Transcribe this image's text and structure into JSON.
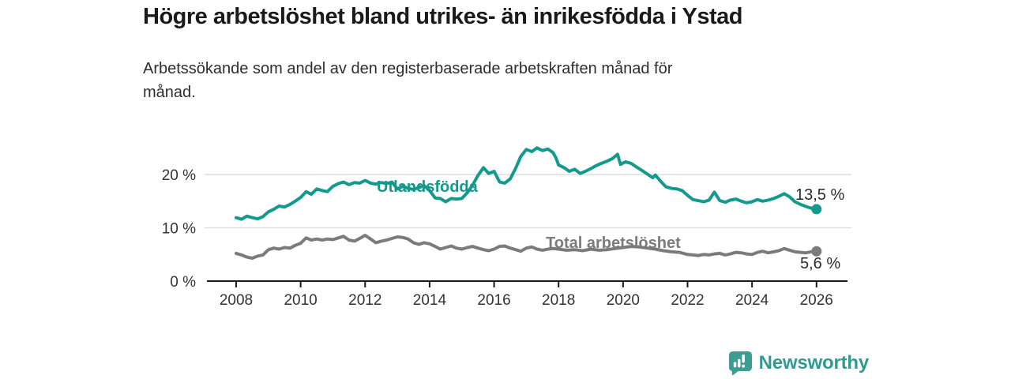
{
  "header": {
    "title": "Högre arbetslöshet bland utrikes- än inrikesfödda i Ystad",
    "subtitle_line1": "Arbetssökande som andel av den registerbaserade arbetskraften månad för",
    "subtitle_line2": "månad."
  },
  "chart_data": {
    "type": "line",
    "title": "Högre arbetslöshet bland utrikes- än inrikesfödda i Ystad",
    "subtitle": "Arbetssökande som andel av den registerbaserade arbetskraften månad för månad.",
    "x_axis": {
      "range": [
        2007.1,
        2027.0
      ],
      "ticks": [
        {
          "year": 2008,
          "label": "2008"
        },
        {
          "year": 2010,
          "label": "2010"
        },
        {
          "year": 2012,
          "label": "2012"
        },
        {
          "year": 2014,
          "label": "2014"
        },
        {
          "year": 2016,
          "label": "2016"
        },
        {
          "year": 2018,
          "label": "2018"
        },
        {
          "year": 2020,
          "label": "2020"
        },
        {
          "year": 2022,
          "label": "2022"
        },
        {
          "year": 2024,
          "label": "2024"
        },
        {
          "year": 2026,
          "label": "2026"
        }
      ]
    },
    "y_axis": {
      "unit": "%",
      "range": [
        0,
        26
      ],
      "grid": true,
      "ticks": [
        {
          "value": 0,
          "label": "0 %"
        },
        {
          "value": 10,
          "label": "10 %"
        },
        {
          "value": 20,
          "label": "20 %"
        }
      ]
    },
    "legend_position": "inline-labels",
    "series": [
      {
        "name": "Utlandsfödda",
        "color": "#149a8d",
        "end_label": "13,5 %",
        "end_value": 13.5,
        "points": [
          [
            2008.0,
            11.9
          ],
          [
            2008.17,
            11.6
          ],
          [
            2008.33,
            12.2
          ],
          [
            2008.5,
            11.9
          ],
          [
            2008.67,
            11.7
          ],
          [
            2008.83,
            12.1
          ],
          [
            2009.0,
            13.0
          ],
          [
            2009.17,
            13.5
          ],
          [
            2009.33,
            14.1
          ],
          [
            2009.5,
            13.9
          ],
          [
            2009.67,
            14.4
          ],
          [
            2009.83,
            15.0
          ],
          [
            2010.0,
            15.7
          ],
          [
            2010.17,
            16.8
          ],
          [
            2010.33,
            16.3
          ],
          [
            2010.5,
            17.3
          ],
          [
            2010.67,
            17.0
          ],
          [
            2010.83,
            16.8
          ],
          [
            2011.0,
            17.8
          ],
          [
            2011.17,
            18.3
          ],
          [
            2011.33,
            18.6
          ],
          [
            2011.5,
            18.1
          ],
          [
            2011.67,
            18.5
          ],
          [
            2011.83,
            18.4
          ],
          [
            2012.0,
            18.9
          ],
          [
            2012.17,
            18.4
          ],
          [
            2012.33,
            18.2
          ],
          [
            2012.5,
            18.5
          ],
          [
            2012.67,
            18.3
          ],
          [
            2012.83,
            18.6
          ],
          [
            2013.0,
            17.3
          ],
          [
            2013.17,
            17.8
          ],
          [
            2013.33,
            17.4
          ],
          [
            2013.5,
            17.2
          ],
          [
            2013.67,
            17.6
          ],
          [
            2013.83,
            17.9
          ],
          [
            2014.0,
            17.0
          ],
          [
            2014.17,
            15.6
          ],
          [
            2014.33,
            15.5
          ],
          [
            2014.5,
            14.9
          ],
          [
            2014.67,
            15.5
          ],
          [
            2014.83,
            15.4
          ],
          [
            2015.0,
            15.5
          ],
          [
            2015.17,
            16.6
          ],
          [
            2015.33,
            18.0
          ],
          [
            2015.5,
            19.8
          ],
          [
            2015.67,
            21.3
          ],
          [
            2015.83,
            20.2
          ],
          [
            2016.0,
            20.6
          ],
          [
            2016.17,
            18.6
          ],
          [
            2016.33,
            18.4
          ],
          [
            2016.5,
            19.2
          ],
          [
            2016.67,
            21.2
          ],
          [
            2016.83,
            23.4
          ],
          [
            2017.0,
            24.7
          ],
          [
            2017.17,
            24.3
          ],
          [
            2017.33,
            25.0
          ],
          [
            2017.5,
            24.5
          ],
          [
            2017.67,
            24.8
          ],
          [
            2017.83,
            24.1
          ],
          [
            2017.92,
            23.1
          ],
          [
            2018.0,
            21.8
          ],
          [
            2018.17,
            21.3
          ],
          [
            2018.33,
            20.6
          ],
          [
            2018.5,
            21.0
          ],
          [
            2018.67,
            20.2
          ],
          [
            2018.83,
            20.6
          ],
          [
            2019.0,
            21.1
          ],
          [
            2019.17,
            21.7
          ],
          [
            2019.33,
            22.1
          ],
          [
            2019.5,
            22.5
          ],
          [
            2019.67,
            23.0
          ],
          [
            2019.83,
            23.8
          ],
          [
            2019.92,
            21.9
          ],
          [
            2020.08,
            22.4
          ],
          [
            2020.25,
            22.1
          ],
          [
            2020.42,
            21.4
          ],
          [
            2020.58,
            20.8
          ],
          [
            2020.75,
            20.1
          ],
          [
            2020.92,
            19.4
          ],
          [
            2021.0,
            19.9
          ],
          [
            2021.17,
            18.7
          ],
          [
            2021.33,
            17.7
          ],
          [
            2021.5,
            17.4
          ],
          [
            2021.67,
            17.3
          ],
          [
            2021.83,
            17.0
          ],
          [
            2022.0,
            16.1
          ],
          [
            2022.17,
            15.3
          ],
          [
            2022.33,
            15.1
          ],
          [
            2022.5,
            14.9
          ],
          [
            2022.67,
            15.2
          ],
          [
            2022.83,
            16.7
          ],
          [
            2023.0,
            15.1
          ],
          [
            2023.17,
            14.8
          ],
          [
            2023.33,
            15.2
          ],
          [
            2023.5,
            15.4
          ],
          [
            2023.67,
            15.0
          ],
          [
            2023.83,
            14.7
          ],
          [
            2024.0,
            14.9
          ],
          [
            2024.17,
            15.3
          ],
          [
            2024.33,
            15.0
          ],
          [
            2024.5,
            15.2
          ],
          [
            2024.67,
            15.5
          ],
          [
            2024.83,
            15.9
          ],
          [
            2025.0,
            16.4
          ],
          [
            2025.17,
            15.8
          ],
          [
            2025.33,
            14.9
          ],
          [
            2025.5,
            14.4
          ],
          [
            2025.67,
            14.0
          ],
          [
            2025.83,
            13.7
          ],
          [
            2026.0,
            13.5
          ]
        ]
      },
      {
        "name": "Total arbetslöshet",
        "color": "#7b7b7b",
        "end_label": "5,6 %",
        "end_value": 5.6,
        "points": [
          [
            2008.0,
            5.2
          ],
          [
            2008.17,
            4.9
          ],
          [
            2008.33,
            4.5
          ],
          [
            2008.5,
            4.3
          ],
          [
            2008.67,
            4.7
          ],
          [
            2008.83,
            4.9
          ],
          [
            2009.0,
            5.9
          ],
          [
            2009.17,
            6.2
          ],
          [
            2009.33,
            6.0
          ],
          [
            2009.5,
            6.3
          ],
          [
            2009.67,
            6.2
          ],
          [
            2009.83,
            6.7
          ],
          [
            2010.0,
            7.1
          ],
          [
            2010.17,
            8.1
          ],
          [
            2010.33,
            7.7
          ],
          [
            2010.5,
            7.9
          ],
          [
            2010.67,
            7.7
          ],
          [
            2010.83,
            7.9
          ],
          [
            2011.0,
            7.8
          ],
          [
            2011.17,
            8.1
          ],
          [
            2011.33,
            8.4
          ],
          [
            2011.5,
            7.7
          ],
          [
            2011.67,
            7.5
          ],
          [
            2011.83,
            8.0
          ],
          [
            2012.0,
            8.6
          ],
          [
            2012.17,
            7.9
          ],
          [
            2012.33,
            7.2
          ],
          [
            2012.5,
            7.5
          ],
          [
            2012.67,
            7.7
          ],
          [
            2012.83,
            8.0
          ],
          [
            2013.0,
            8.3
          ],
          [
            2013.17,
            8.2
          ],
          [
            2013.33,
            7.9
          ],
          [
            2013.5,
            7.2
          ],
          [
            2013.67,
            6.9
          ],
          [
            2013.83,
            7.2
          ],
          [
            2014.0,
            7.0
          ],
          [
            2014.17,
            6.5
          ],
          [
            2014.33,
            6.0
          ],
          [
            2014.5,
            6.3
          ],
          [
            2014.67,
            6.6
          ],
          [
            2014.83,
            6.2
          ],
          [
            2015.0,
            6.0
          ],
          [
            2015.17,
            6.3
          ],
          [
            2015.33,
            6.5
          ],
          [
            2015.5,
            6.2
          ],
          [
            2015.67,
            5.9
          ],
          [
            2015.83,
            5.7
          ],
          [
            2016.0,
            6.0
          ],
          [
            2016.17,
            6.5
          ],
          [
            2016.33,
            6.6
          ],
          [
            2016.5,
            6.2
          ],
          [
            2016.67,
            5.9
          ],
          [
            2016.83,
            5.6
          ],
          [
            2017.0,
            6.2
          ],
          [
            2017.17,
            6.4
          ],
          [
            2017.33,
            6.0
          ],
          [
            2017.5,
            5.8
          ],
          [
            2017.67,
            6.0
          ],
          [
            2017.83,
            6.1
          ],
          [
            2018.0,
            6.0
          ],
          [
            2018.25,
            5.8
          ],
          [
            2018.5,
            5.9
          ],
          [
            2018.75,
            5.7
          ],
          [
            2019.0,
            6.0
          ],
          [
            2019.25,
            5.8
          ],
          [
            2019.5,
            5.9
          ],
          [
            2019.75,
            6.1
          ],
          [
            2020.0,
            6.3
          ],
          [
            2020.25,
            6.5
          ],
          [
            2020.5,
            6.4
          ],
          [
            2020.75,
            6.2
          ],
          [
            2021.0,
            6.0
          ],
          [
            2021.25,
            5.7
          ],
          [
            2021.5,
            5.5
          ],
          [
            2021.75,
            5.4
          ],
          [
            2022.0,
            5.0
          ],
          [
            2022.17,
            4.9
          ],
          [
            2022.33,
            4.8
          ],
          [
            2022.5,
            5.0
          ],
          [
            2022.67,
            4.9
          ],
          [
            2022.83,
            5.1
          ],
          [
            2023.0,
            5.2
          ],
          [
            2023.17,
            4.9
          ],
          [
            2023.33,
            5.1
          ],
          [
            2023.5,
            5.4
          ],
          [
            2023.67,
            5.3
          ],
          [
            2023.83,
            5.1
          ],
          [
            2024.0,
            5.0
          ],
          [
            2024.17,
            5.4
          ],
          [
            2024.33,
            5.6
          ],
          [
            2024.5,
            5.3
          ],
          [
            2024.67,
            5.5
          ],
          [
            2024.83,
            5.7
          ],
          [
            2025.0,
            6.1
          ],
          [
            2025.17,
            5.8
          ],
          [
            2025.33,
            5.5
          ],
          [
            2025.5,
            5.4
          ],
          [
            2025.67,
            5.3
          ],
          [
            2025.83,
            5.5
          ],
          [
            2026.0,
            5.6
          ]
        ]
      }
    ],
    "colors": {
      "grid": "#dadada",
      "axis": "#1a1a1a",
      "tick_label": "#333333",
      "value_label": "#2b2b2b"
    }
  },
  "footer": {
    "brand": "Newsworthy",
    "brand_color": "#2f9a90",
    "logo_icon": "bar-chart-speech-bubble-icon"
  }
}
